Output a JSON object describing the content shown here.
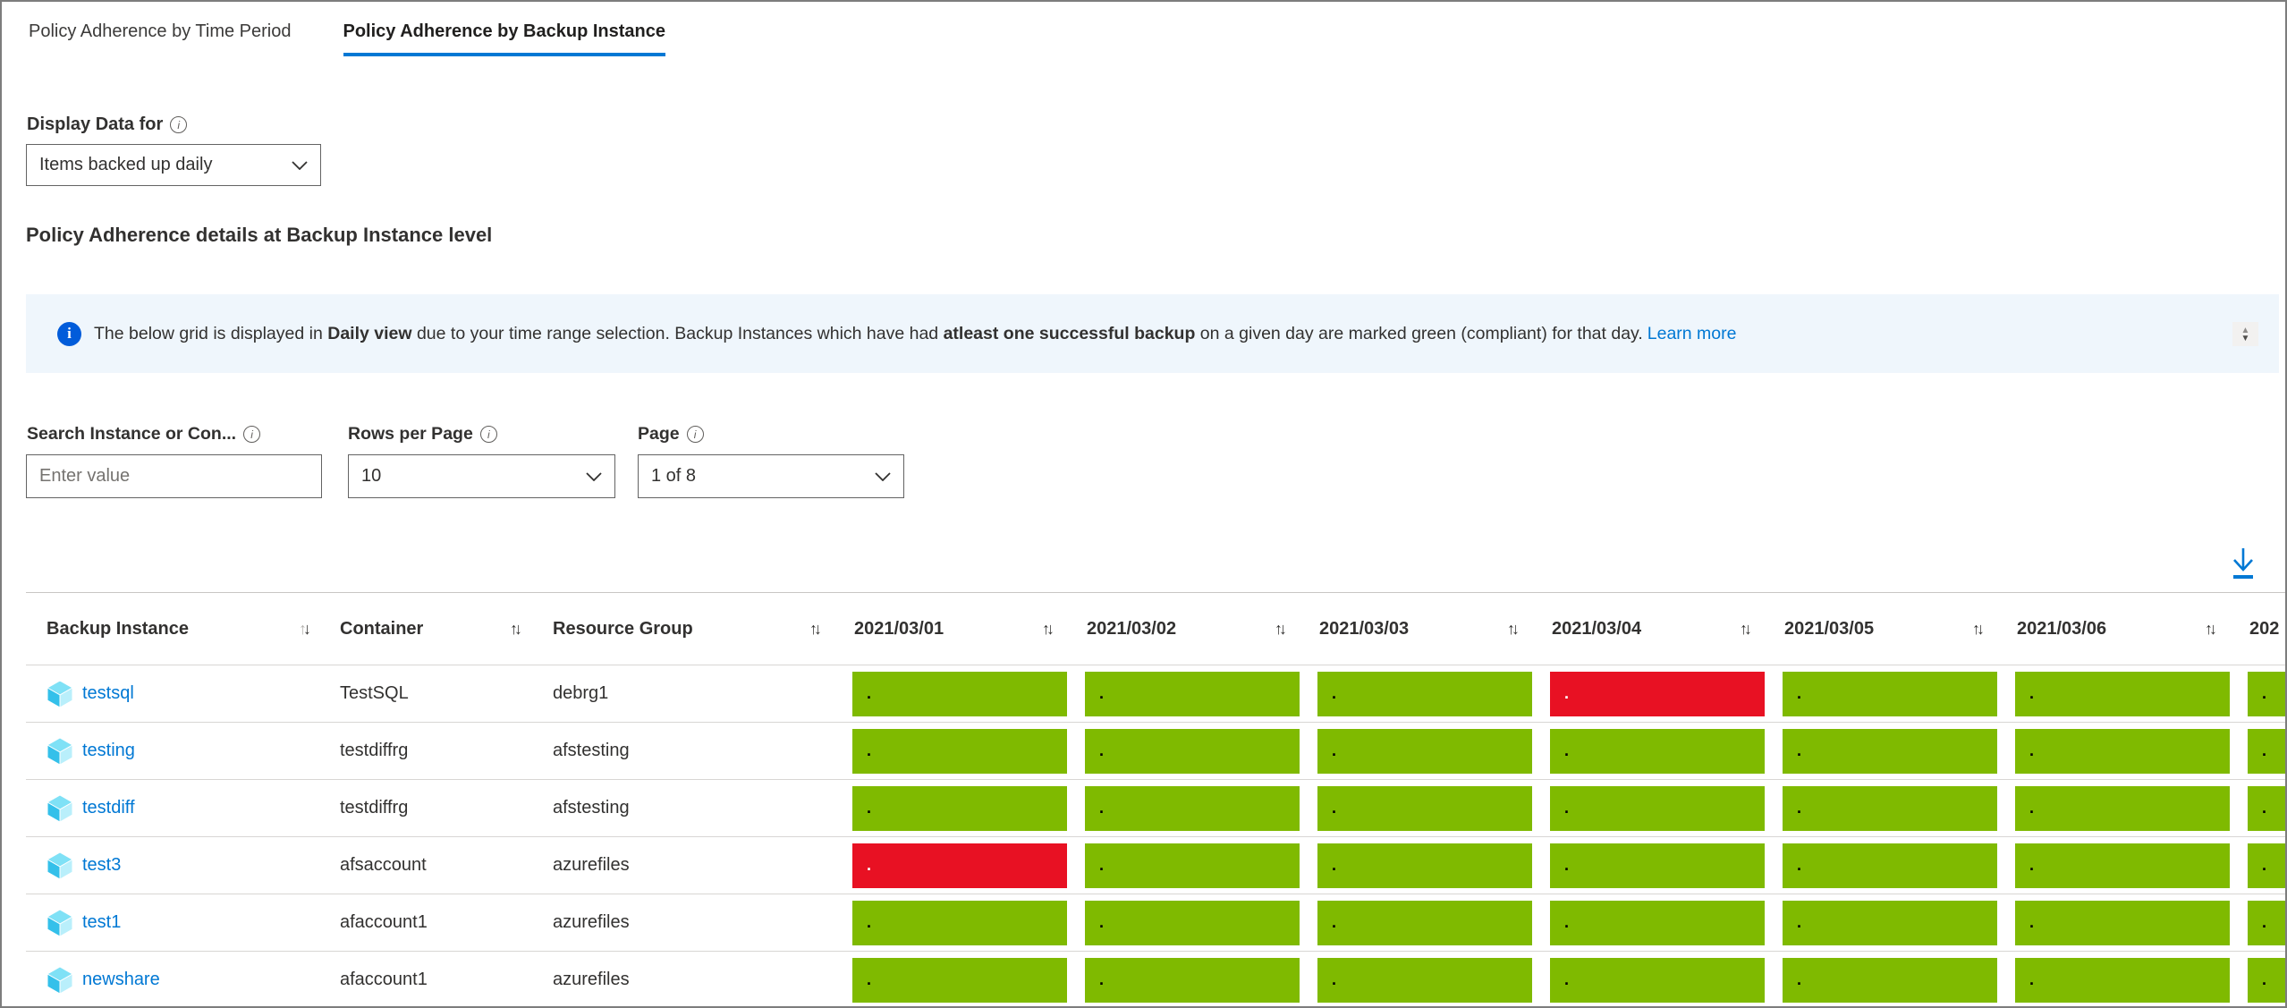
{
  "tabs": [
    {
      "label": "Policy Adherence by Time Period",
      "active": false
    },
    {
      "label": "Policy Adherence by Backup Instance",
      "active": true
    }
  ],
  "display_data": {
    "label": "Display Data for",
    "value": "Items backed up daily"
  },
  "section_title": "Policy Adherence details at Backup Instance level",
  "banner": {
    "segments": [
      {
        "text": "The below grid is displayed in ",
        "bold": false
      },
      {
        "text": "Daily view",
        "bold": true
      },
      {
        "text": " due to your time range selection. Backup Instances which have had ",
        "bold": false
      },
      {
        "text": "atleast one successful backup",
        "bold": true
      },
      {
        "text": " on a given day are marked green (compliant) for that day.",
        "bold": false
      }
    ],
    "link_label": "Learn more"
  },
  "filters": {
    "search": {
      "label": "Search Instance or Con...",
      "placeholder": "Enter value"
    },
    "rows_per_page": {
      "label": "Rows per Page",
      "value": "10"
    },
    "page": {
      "label": "Page",
      "value": "1 of 8"
    }
  },
  "table": {
    "columns": [
      "Backup Instance",
      "Container",
      "Resource Group",
      "2021/03/01",
      "2021/03/02",
      "2021/03/03",
      "2021/03/04",
      "2021/03/05",
      "2021/03/06",
      "202"
    ],
    "cell_marker": ".",
    "rows": [
      {
        "instance": "testsql",
        "container": "TestSQL",
        "resource_group": "debrg1",
        "statuses": [
          "compliant",
          "compliant",
          "compliant",
          "noncompliant",
          "compliant",
          "compliant",
          "compliant"
        ]
      },
      {
        "instance": "testing",
        "container": "testdiffrg",
        "resource_group": "afstesting",
        "statuses": [
          "compliant",
          "compliant",
          "compliant",
          "compliant",
          "compliant",
          "compliant",
          "compliant"
        ]
      },
      {
        "instance": "testdiff",
        "container": "testdiffrg",
        "resource_group": "afstesting",
        "statuses": [
          "compliant",
          "compliant",
          "compliant",
          "compliant",
          "compliant",
          "compliant",
          "compliant"
        ]
      },
      {
        "instance": "test3",
        "container": "afsaccount",
        "resource_group": "azurefiles",
        "statuses": [
          "noncompliant",
          "compliant",
          "compliant",
          "compliant",
          "compliant",
          "compliant",
          "compliant"
        ]
      },
      {
        "instance": "test1",
        "container": "afaccount1",
        "resource_group": "azurefiles",
        "statuses": [
          "compliant",
          "compliant",
          "compliant",
          "compliant",
          "compliant",
          "compliant",
          "compliant"
        ]
      },
      {
        "instance": "newshare",
        "container": "afaccount1",
        "resource_group": "azurefiles",
        "statuses": [
          "compliant",
          "compliant",
          "compliant",
          "compliant",
          "compliant",
          "compliant",
          "compliant"
        ]
      }
    ]
  },
  "icons": {
    "sort_up": "↑",
    "sort_down": "↓",
    "spinner_up": "▲",
    "spinner_down": "▼",
    "info_glyph": "i"
  },
  "colors": {
    "compliant": "#7fba00",
    "noncompliant": "#e81123",
    "accent": "#0078d4",
    "banner_bg": "#eff6fc",
    "info_icon_bg": "#015cda"
  }
}
